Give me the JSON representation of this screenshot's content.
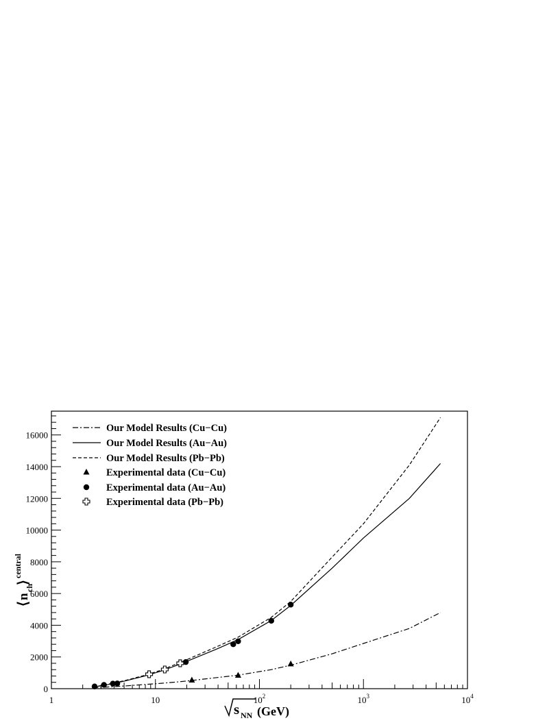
{
  "chart_data": {
    "type": "line",
    "xscale": "log",
    "xlim": [
      1,
      10000
    ],
    "ylim": [
      0,
      17500
    ],
    "x_ticks": [
      {
        "base": "1",
        "exp": ""
      },
      {
        "base": "10",
        "exp": ""
      },
      {
        "base": "10",
        "exp": "2"
      },
      {
        "base": "10",
        "exp": "3"
      },
      {
        "base": "10",
        "exp": "4"
      }
    ],
    "y_ticks": [
      "0",
      "2000",
      "4000",
      "6000",
      "8000",
      "10000",
      "12000",
      "14000",
      "16000"
    ],
    "xlabel": {
      "pre": "",
      "sub": "NN",
      "post": "(GeV)",
      "sym": "s"
    },
    "ylabel": {
      "sym": "n",
      "sub": "ch",
      "sup": "central"
    },
    "legend_position": "top-left",
    "series": [
      {
        "name": "Our Model Results (Cu−Cu)",
        "style": "dashdot",
        "color": "#000000",
        "x": [
          2.5,
          4,
          5,
          7.7,
          11.5,
          17.3,
          22.4,
          39,
          62.4,
          130,
          200,
          500,
          1000,
          2760,
          5500
        ],
        "y": [
          50,
          130,
          170,
          260,
          340,
          440,
          520,
          700,
          850,
          1200,
          1480,
          2200,
          2850,
          3800,
          4800
        ]
      },
      {
        "name": "Our Model Results (Au−Au)",
        "style": "solid",
        "color": "#000000",
        "x": [
          2.5,
          3.3,
          4,
          5,
          7.7,
          11.5,
          17.3,
          19.6,
          39,
          62.4,
          130,
          200,
          500,
          1000,
          2760,
          5500
        ],
        "y": [
          100,
          220,
          340,
          470,
          780,
          1120,
          1550,
          1700,
          2500,
          3100,
          4300,
          5250,
          7600,
          9500,
          12000,
          14200
        ]
      },
      {
        "name": "Our Model Results (Pb−Pb)",
        "style": "dashed",
        "color": "#000000",
        "x": [
          2.5,
          3.3,
          4,
          5,
          7.7,
          11.5,
          17.3,
          19.6,
          39,
          62.4,
          130,
          200,
          500,
          1000,
          2760,
          5500
        ],
        "y": [
          110,
          240,
          360,
          500,
          820,
          1180,
          1650,
          1800,
          2650,
          3250,
          4500,
          5500,
          8300,
          10400,
          14100,
          17100
        ]
      },
      {
        "name": "Experimental data (Cu−Cu)",
        "style": "triangle",
        "color": "#000000",
        "x": [
          22.4,
          62.4,
          200
        ],
        "y": [
          540,
          840,
          1560
        ]
      },
      {
        "name": "Experimental data (Au−Au)",
        "style": "circle",
        "color": "#000000",
        "x": [
          2.6,
          3.2,
          3.9,
          4.3,
          19.6,
          56,
          62.4,
          130,
          200
        ],
        "y": [
          140,
          240,
          320,
          330,
          1680,
          2800,
          2990,
          4280,
          5300
        ]
      },
      {
        "name": "Experimental data (Pb−Pb)",
        "style": "cross",
        "color": "#000000",
        "x": [
          8.7,
          12.3,
          17.3
        ],
        "y": [
          910,
          1210,
          1600
        ]
      }
    ]
  }
}
